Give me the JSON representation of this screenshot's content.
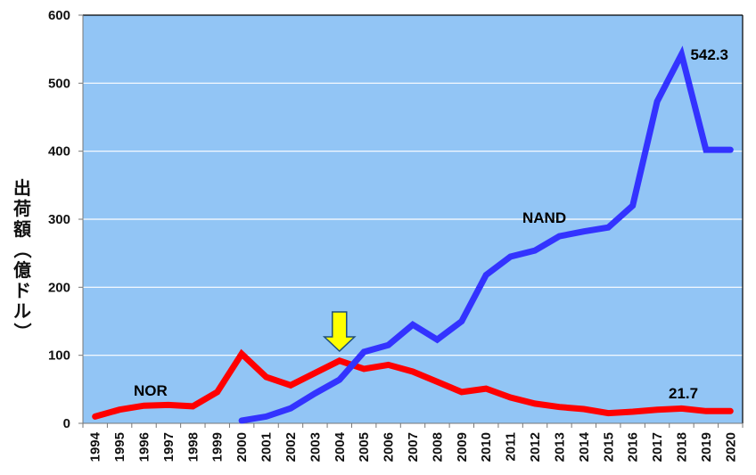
{
  "chart_data": {
    "type": "line",
    "title": "",
    "xlabel": "",
    "ylabel": "出荷額（億ドル）",
    "ylim": [
      0,
      600
    ],
    "yticks": [
      0,
      100,
      200,
      300,
      400,
      500,
      600
    ],
    "grid": true,
    "background_color": "#92C5F5",
    "categories": [
      "1994",
      "1995",
      "1996",
      "1997",
      "1998",
      "1999",
      "2000",
      "2001",
      "2002",
      "2003",
      "2004",
      "2005",
      "2006",
      "2007",
      "2008",
      "2009",
      "2010",
      "2011",
      "2012",
      "2013",
      "2014",
      "2015",
      "2016",
      "2017",
      "2018",
      "2019",
      "2020"
    ],
    "series": [
      {
        "name": "NOR",
        "color": "#FF0000",
        "values": [
          10,
          20,
          26,
          27,
          25,
          46,
          102,
          68,
          56,
          74,
          92,
          80,
          86,
          76,
          61,
          46,
          51,
          38,
          29,
          24,
          21,
          15,
          17,
          20,
          21.7,
          18,
          18
        ]
      },
      {
        "name": "NAND",
        "color": "#3333FF",
        "values": [
          null,
          null,
          null,
          null,
          null,
          null,
          4,
          10,
          22,
          44,
          64,
          105,
          115,
          145,
          123,
          150,
          218,
          245,
          254,
          275,
          282,
          288,
          320,
          473,
          542.3,
          402,
          402
        ]
      }
    ],
    "annotations": [
      {
        "text": "NOR",
        "series": "NOR",
        "near": "1996"
      },
      {
        "text": "NAND",
        "series": "NAND",
        "near": "2012"
      },
      {
        "text": "542.3",
        "series": "NAND",
        "at": "2018"
      },
      {
        "text": "21.7",
        "series": "NOR",
        "at": "2018"
      },
      {
        "type": "arrow",
        "direction": "down",
        "color": "#FFFF00",
        "at": "2004",
        "meaning": "crossover point"
      }
    ]
  }
}
